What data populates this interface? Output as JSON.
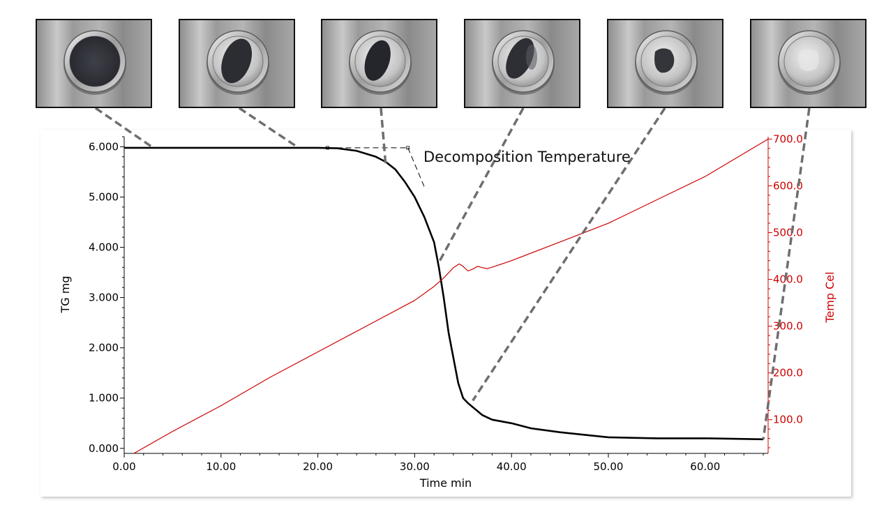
{
  "chart_data": {
    "type": "line",
    "xlabel": "Time min",
    "ylabel": "TG mg",
    "y2label": "Temp Cel",
    "annotation": "Decomposition Temperature",
    "xlim": [
      0,
      66.5
    ],
    "ylim": [
      -0.1,
      6.2
    ],
    "y2lim": [
      28,
      705
    ],
    "x_ticks": [
      0,
      10,
      20,
      30,
      40,
      50,
      60
    ],
    "x_tick_labels": [
      "0.00",
      "10.00",
      "20.00",
      "30.00",
      "40.00",
      "50.00",
      "60.00"
    ],
    "y_ticks": [
      0,
      1,
      2,
      3,
      4,
      5,
      6
    ],
    "y_tick_labels": [
      "0.000",
      "1.000",
      "2.000",
      "3.000",
      "4.000",
      "5.000",
      "6.000"
    ],
    "y2_ticks": [
      100,
      200,
      300,
      400,
      500,
      600,
      700
    ],
    "y2_tick_labels": [
      "100.0",
      "200.0",
      "300.0",
      "400.0",
      "500.0",
      "600.0",
      "700.0"
    ],
    "series": [
      {
        "axis": "left",
        "color": "#000000",
        "x": [
          0,
          5,
          10,
          15,
          20,
          22,
          24,
          26,
          27,
          28,
          29,
          30,
          31,
          32,
          32.5,
          33,
          33.5,
          34,
          34.5,
          35,
          35.5,
          36,
          37,
          38,
          40,
          42,
          45,
          48,
          50,
          55,
          60,
          66
        ],
        "y": [
          5.98,
          5.98,
          5.98,
          5.98,
          5.98,
          5.97,
          5.92,
          5.8,
          5.7,
          5.55,
          5.3,
          5.0,
          4.6,
          4.1,
          3.6,
          3.0,
          2.3,
          1.8,
          1.3,
          1.0,
          0.9,
          0.82,
          0.66,
          0.57,
          0.5,
          0.4,
          0.32,
          0.26,
          0.22,
          0.2,
          0.2,
          0.18
        ]
      },
      {
        "axis": "right",
        "color": "#cc0000",
        "x": [
          1,
          5,
          10,
          15,
          20,
          25,
          30,
          32,
          33,
          34,
          34.6,
          35,
          35.5,
          36,
          36.5,
          37,
          37.5,
          38,
          40,
          45,
          50,
          55,
          60,
          66.5
        ],
        "y": [
          28,
          75,
          130,
          190,
          245,
          300,
          355,
          385,
          403,
          425,
          433,
          428,
          418,
          422,
          428,
          425,
          423,
          426,
          440,
          480,
          520,
          570,
          620,
          700
        ]
      }
    ],
    "markers": [
      {
        "x": 3,
        "y": 5.98
      },
      {
        "x": 18,
        "y": 5.98
      },
      {
        "x": 27,
        "y": 5.65
      },
      {
        "x": 32.5,
        "y": 3.7
      },
      {
        "x": 36,
        "y": 0.95
      },
      {
        "x": 66,
        "y": 0.18
      }
    ],
    "tangent_lines": [
      {
        "x": [
          21,
          29.3
        ],
        "y": [
          5.98,
          5.98
        ]
      },
      {
        "x": [
          29.3,
          31
        ],
        "y": [
          5.98,
          5.2
        ]
      }
    ]
  }
}
